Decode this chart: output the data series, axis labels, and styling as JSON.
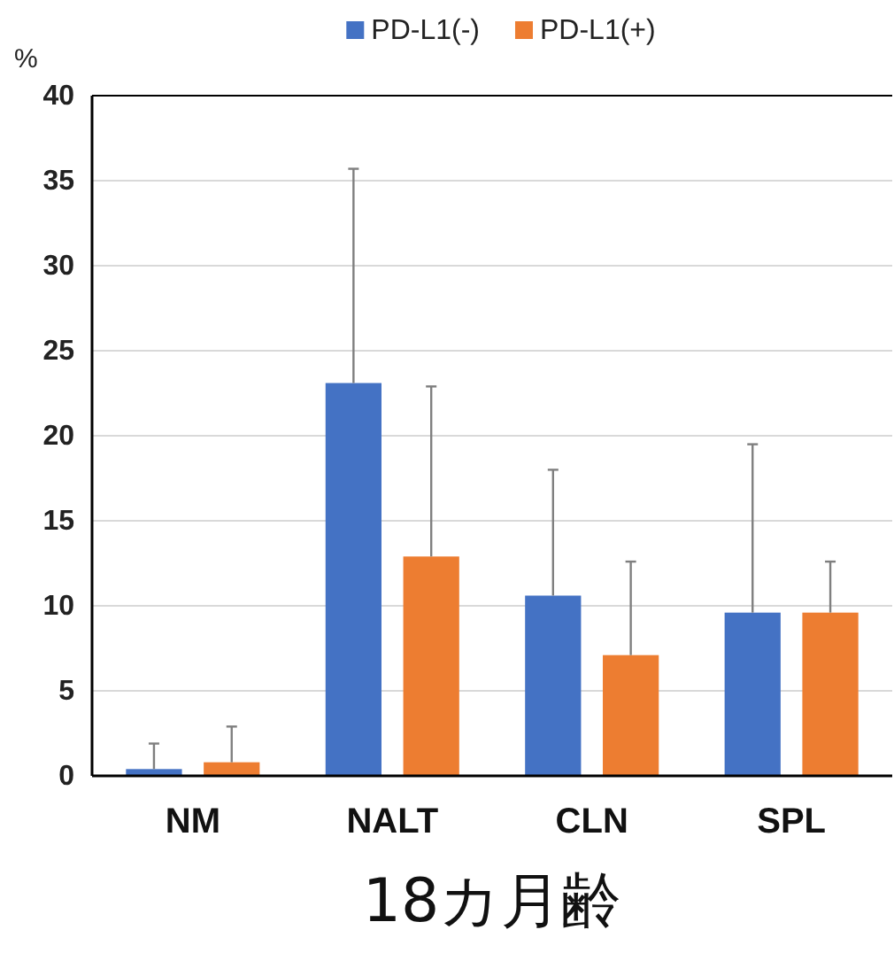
{
  "chart_data": {
    "type": "bar",
    "ylabel": "%",
    "xlabel": "18カ月齢",
    "categories": [
      "NM",
      "NALT",
      "CLN",
      "SPL"
    ],
    "series": [
      {
        "name": "PD-L1(-)",
        "color": "#4472c4",
        "values": [
          0.4,
          23.1,
          10.6,
          9.6
        ],
        "errors": [
          [
            0.4,
            1.9
          ],
          [
            23.1,
            35.7
          ],
          [
            10.6,
            18.0
          ],
          [
            9.6,
            19.5
          ]
        ]
      },
      {
        "name": "PD-L1(+)",
        "color": "#ed7d31",
        "values": [
          0.8,
          12.9,
          7.1,
          9.6
        ],
        "errors": [
          [
            0.8,
            2.9
          ],
          [
            12.9,
            22.9
          ],
          [
            7.1,
            12.6
          ],
          [
            9.6,
            12.6
          ]
        ]
      }
    ],
    "ylim": [
      0,
      40
    ],
    "yticks": [
      0,
      5,
      10,
      15,
      20,
      25,
      30,
      35,
      40
    ],
    "grid": "y",
    "legend": "top"
  }
}
